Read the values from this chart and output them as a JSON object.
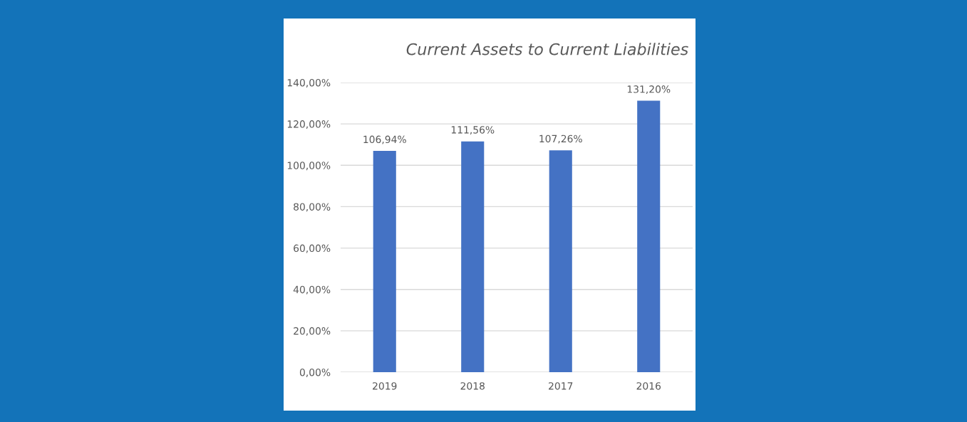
{
  "chart_data": {
    "type": "bar",
    "title": "Current Assets to Current Liabilities",
    "categories": [
      "2019",
      "2018",
      "2017",
      "2016"
    ],
    "values": [
      106.94,
      111.56,
      107.26,
      131.2
    ],
    "value_labels": [
      "106,94%",
      "111,56%",
      "107,26%",
      "131,20%"
    ],
    "color": "#4472c4",
    "ylim": [
      0,
      140
    ],
    "yticks": [
      {
        "value": 0,
        "label": "0,00%"
      },
      {
        "value": 20,
        "label": "20,00%"
      },
      {
        "value": 40,
        "label": "40,00%"
      },
      {
        "value": 60,
        "label": "60,00%"
      },
      {
        "value": 80,
        "label": "80,00%"
      },
      {
        "value": 100,
        "label": "100,00%"
      },
      {
        "value": 120,
        "label": "120,00%"
      },
      {
        "value": 140,
        "label": "140,00%"
      }
    ],
    "grid": "y"
  }
}
